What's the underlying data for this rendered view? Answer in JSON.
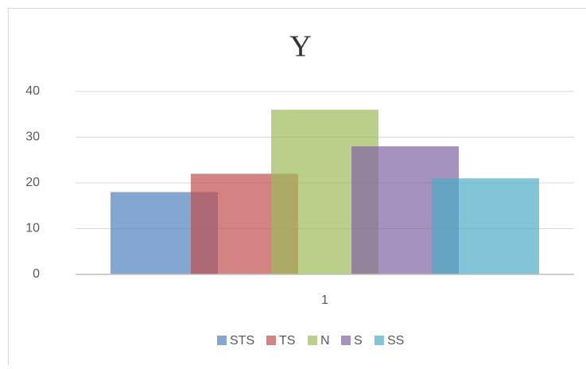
{
  "chart_data": {
    "type": "bar",
    "title": "Y",
    "categories": [
      "1"
    ],
    "series": [
      {
        "name": "STS",
        "color": "#4f81bd",
        "values": [
          18
        ]
      },
      {
        "name": "TS",
        "color": "#c0504d",
        "values": [
          22
        ]
      },
      {
        "name": "N",
        "color": "#9bbb59",
        "values": [
          36
        ]
      },
      {
        "name": "S",
        "color": "#8064a2",
        "values": [
          28
        ]
      },
      {
        "name": "SS",
        "color": "#4bacc6",
        "values": [
          21
        ]
      }
    ],
    "ylim": [
      0,
      40
    ],
    "yticks": [
      0,
      10,
      20,
      30,
      40
    ],
    "grid": true,
    "legend": "bottom"
  }
}
